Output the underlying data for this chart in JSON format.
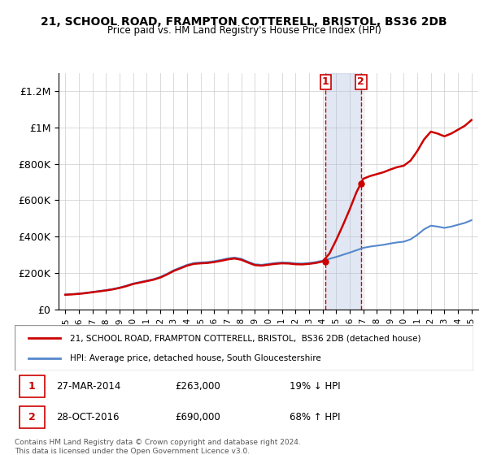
{
  "title1": "21, SCHOOL ROAD, FRAMPTON COTTERELL, BRISTOL, BS36 2DB",
  "title2": "Price paid vs. HM Land Registry's House Price Index (HPI)",
  "ylim": [
    0,
    1300000
  ],
  "yticks": [
    0,
    200000,
    400000,
    600000,
    800000,
    1000000,
    1200000
  ],
  "ytick_labels": [
    "£0",
    "£200K",
    "£400K",
    "£600K",
    "£800K",
    "£1M",
    "£1.2M"
  ],
  "transaction1": {
    "date": "27-MAR-2014",
    "price": 263000,
    "pct": "19%",
    "dir": "↓",
    "year": 2014.23
  },
  "transaction2": {
    "date": "28-OCT-2016",
    "price": 690000,
    "pct": "68%",
    "dir": "↑",
    "year": 2016.83
  },
  "red_color": "#cc0000",
  "blue_color": "#5588cc",
  "vline_color": "#cc0000",
  "shade_color": "#aabbdd",
  "legend_label1": "21, SCHOOL ROAD, FRAMPTON COTTERELL, BRISTOL,  BS36 2DB (detached house)",
  "legend_label2": "HPI: Average price, detached house, South Gloucestershire",
  "footer": "Contains HM Land Registry data © Crown copyright and database right 2024.\nThis data is licensed under the Open Government Licence v3.0.",
  "table_rows": [
    {
      "num": "1",
      "date": "27-MAR-2014",
      "price": "£263,000",
      "pct": "19% ↓ HPI"
    },
    {
      "num": "2",
      "date": "28-OCT-2016",
      "price": "£690,000",
      "pct": "68% ↑ HPI"
    }
  ]
}
